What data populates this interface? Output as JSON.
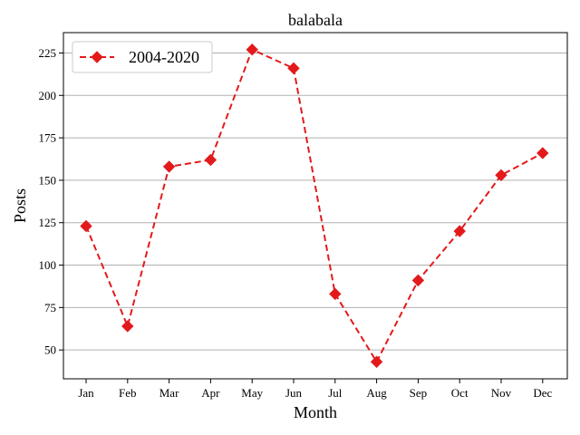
{
  "chart_data": {
    "type": "line",
    "title": "balabala",
    "xlabel": "Month",
    "ylabel": "Posts",
    "categories": [
      "Jan",
      "Feb",
      "Mar",
      "Apr",
      "May",
      "Jun",
      "Jul",
      "Aug",
      "Sep",
      "Oct",
      "Nov",
      "Dec"
    ],
    "series": [
      {
        "name": "2004-2020",
        "values": [
          123,
          64,
          158,
          162,
          227,
          216,
          83,
          43,
          91,
          120,
          153,
          166
        ],
        "color": "#e31a1c",
        "line_style": "dashed",
        "marker": "diamond"
      }
    ],
    "yticks": [
      50,
      75,
      100,
      125,
      150,
      175,
      200,
      225
    ],
    "ylim": [
      33,
      237
    ],
    "grid": "horizontal",
    "legend_position": "top-left"
  }
}
